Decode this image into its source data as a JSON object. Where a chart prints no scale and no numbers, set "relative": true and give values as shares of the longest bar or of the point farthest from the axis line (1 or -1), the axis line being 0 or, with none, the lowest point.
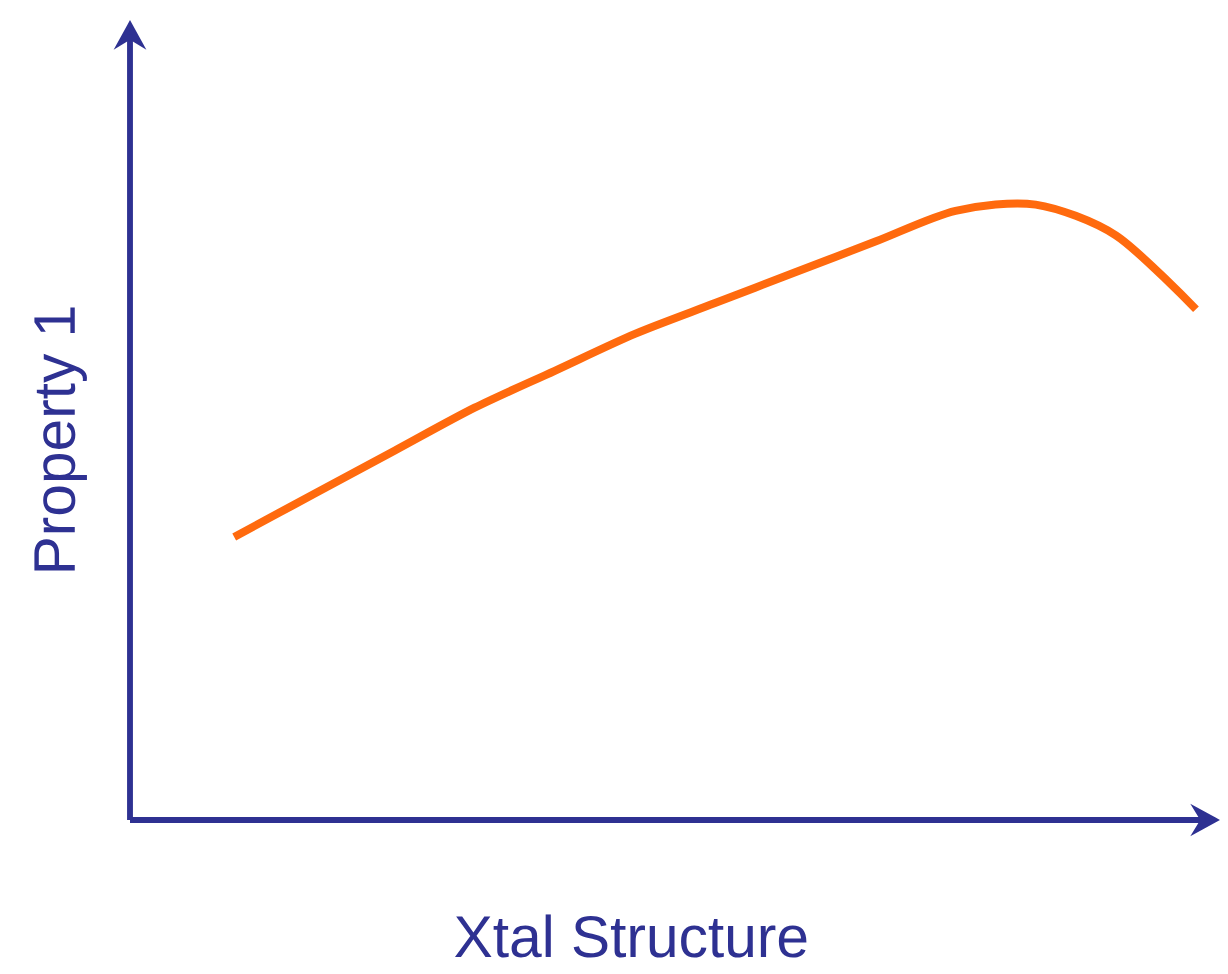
{
  "chart_data": {
    "type": "line",
    "relative": true,
    "xlabel": "Xtal Structure",
    "ylabel": "Property 1",
    "categories": [
      null,
      null,
      null,
      null,
      null,
      null,
      null,
      null,
      null,
      null,
      null,
      null,
      null
    ],
    "series": [
      {
        "color": "#ff6a0e",
        "values": [
          0.46,
          0.53,
          0.6,
          0.67,
          0.73,
          0.79,
          0.84,
          0.89,
          0.94,
          0.99,
          1,
          0.95,
          0.83
        ]
      }
    ]
  }
}
